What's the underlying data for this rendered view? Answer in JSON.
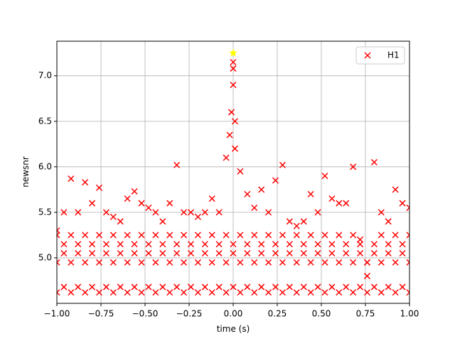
{
  "chart_data": {
    "type": "scatter",
    "xlabel": "time (s)",
    "ylabel": "newsnr",
    "xlim": [
      -1.0,
      1.0
    ],
    "ylim": [
      4.5,
      7.38
    ],
    "xticks": [
      {
        "value": -1.0,
        "label": "−1.00"
      },
      {
        "value": -0.75,
        "label": "−0.75"
      },
      {
        "value": -0.5,
        "label": "−0.50"
      },
      {
        "value": -0.25,
        "label": "−0.25"
      },
      {
        "value": 0,
        "label": "0.00"
      },
      {
        "value": 0.25,
        "label": "0.25"
      },
      {
        "value": 0.5,
        "label": "0.50"
      },
      {
        "value": 0.75,
        "label": "0.75"
      },
      {
        "value": 1.0,
        "label": "1.00"
      }
    ],
    "yticks": [
      {
        "value": 5.0,
        "label": "5.0"
      },
      {
        "value": 5.5,
        "label": "5.5"
      },
      {
        "value": 6.0,
        "label": "6.0"
      },
      {
        "value": 6.5,
        "label": "6.5"
      },
      {
        "value": 7.0,
        "label": "7.0"
      }
    ],
    "grid": true,
    "legend": "upper right",
    "series": [
      {
        "name": "H1",
        "color": "#ff0000",
        "marker": "x",
        "x": [
          -1.0,
          -0.96,
          -0.92,
          -0.88,
          -0.84,
          -0.8,
          -0.76,
          -0.72,
          -0.68,
          -0.64,
          -0.6,
          -0.56,
          -0.52,
          -0.48,
          -0.44,
          -0.4,
          -0.36,
          -0.32,
          -0.28,
          -0.24,
          -0.2,
          -0.16,
          -0.12,
          -0.08,
          -0.04,
          0,
          0.04,
          0.08,
          0.12,
          0.16,
          0.2,
          0.24,
          0.28,
          0.32,
          0.36,
          0.4,
          0.44,
          0.48,
          0.52,
          0.56,
          0.6,
          0.64,
          0.68,
          0.72,
          0.76,
          0.8,
          0.84,
          0.88,
          0.92,
          0.96,
          1.0,
          -1.0,
          -0.96,
          -0.92,
          -0.88,
          -0.84,
          -0.8,
          -0.76,
          -0.72,
          -0.68,
          -0.64,
          -0.6,
          -0.56,
          -0.52,
          -0.48,
          -0.44,
          -0.4,
          -0.36,
          -0.32,
          -0.28,
          -0.24,
          -0.2,
          -0.16,
          -0.12,
          -0.08,
          -0.04,
          0,
          0.04,
          0.08,
          0.12,
          0.16,
          0.2,
          0.24,
          0.28,
          0.32,
          0.36,
          0.4,
          0.44,
          0.48,
          0.52,
          0.56,
          0.6,
          0.64,
          0.68,
          0.72,
          0.76,
          0.8,
          0.84,
          0.88,
          0.92,
          0.96,
          1.0,
          -1.0,
          -0.96,
          -0.92,
          -0.88,
          -0.84,
          -0.8,
          -0.76,
          -0.72,
          -0.68,
          -0.64,
          -0.6,
          -0.56,
          -0.52,
          -0.48,
          -0.44,
          -0.4,
          -0.36,
          -0.32,
          -0.28,
          -0.24,
          -0.2,
          -0.16,
          -0.12,
          -0.08,
          -0.04,
          0,
          0.04,
          0.08,
          0.12,
          0.16,
          0.2,
          0.24,
          0.28,
          0.32,
          0.36,
          0.4,
          0.44,
          0.48,
          0.52,
          0.56,
          0.6,
          0.64,
          0.68,
          0.72,
          0.76,
          0.8,
          0.84,
          0.88,
          0.92,
          0.96,
          1.0,
          -1.0,
          -0.96,
          -0.92,
          -0.88,
          -0.84,
          -0.8,
          -0.76,
          -0.72,
          -0.68,
          -0.64,
          -0.6,
          -0.56,
          -0.52,
          -0.48,
          -0.44,
          -0.4,
          -0.36,
          -0.32,
          -0.28,
          -0.24,
          -0.2,
          -0.16,
          -0.12,
          -0.08,
          -0.04,
          0,
          0.04,
          0.08,
          0.12,
          0.16,
          0.2,
          0.24,
          0.28,
          0.32,
          0.36,
          0.4,
          0.44,
          0.48,
          0.52,
          0.56,
          0.6,
          0.64,
          0.68,
          0.72,
          0.76,
          0.8,
          0.84,
          0.88,
          0.92,
          0.96,
          1.0,
          -0.02,
          -0.01,
          0,
          0,
          0.01,
          0.01
        ],
        "values": [
          4.62,
          4.68,
          4.62,
          4.68,
          4.62,
          4.68,
          4.62,
          4.68,
          4.62,
          4.68,
          4.62,
          4.68,
          4.62,
          4.68,
          4.62,
          4.68,
          4.62,
          4.68,
          4.62,
          4.68,
          4.62,
          4.68,
          4.62,
          4.68,
          4.62,
          4.68,
          4.62,
          4.68,
          4.62,
          4.68,
          4.62,
          4.68,
          4.62,
          4.68,
          4.62,
          4.68,
          4.62,
          4.68,
          4.62,
          4.68,
          4.62,
          4.68,
          4.62,
          4.68,
          4.62,
          4.68,
          4.62,
          4.68,
          4.62,
          4.68,
          4.62,
          4.95,
          5.05,
          4.95,
          5.05,
          4.95,
          5.05,
          4.95,
          5.05,
          4.95,
          5.05,
          4.95,
          5.05,
          4.95,
          5.05,
          4.95,
          5.05,
          4.95,
          5.05,
          4.95,
          5.05,
          4.95,
          5.05,
          4.95,
          5.05,
          4.95,
          5.05,
          4.95,
          5.05,
          4.95,
          5.05,
          4.95,
          5.05,
          4.95,
          5.05,
          4.95,
          5.05,
          4.95,
          5.05,
          4.95,
          5.05,
          4.95,
          5.05,
          4.95,
          5.05,
          4.95,
          5.05,
          4.95,
          5.05,
          4.95,
          5.05,
          4.95,
          5.25,
          5.15,
          5.25,
          5.15,
          5.25,
          5.15,
          5.25,
          5.15,
          5.25,
          5.15,
          5.25,
          5.15,
          5.25,
          5.15,
          5.25,
          5.15,
          5.25,
          5.15,
          5.25,
          5.15,
          5.25,
          5.15,
          5.25,
          5.15,
          5.25,
          5.15,
          5.25,
          5.15,
          5.25,
          5.15,
          5.25,
          5.15,
          5.25,
          5.15,
          5.25,
          5.15,
          5.25,
          5.15,
          5.25,
          5.15,
          5.25,
          5.15,
          5.25,
          5.15,
          4.8,
          5.15,
          5.25,
          5.15,
          5.25,
          5.15,
          5.25,
          5.3,
          5.5,
          5.87,
          5.5,
          5.83,
          5.6,
          5.77,
          5.5,
          5.45,
          5.4,
          5.65,
          5.73,
          5.6,
          5.55,
          5.5,
          5.4,
          5.6,
          6.02,
          5.5,
          5.5,
          5.45,
          5.5,
          5.65,
          5.5,
          6.1,
          7.15,
          5.95,
          5.7,
          5.55,
          5.75,
          5.5,
          5.85,
          6.02,
          5.4,
          5.35,
          5.4,
          5.7,
          5.5,
          5.9,
          5.65,
          5.6,
          5.6,
          6.0,
          5.2,
          4.95,
          6.05,
          5.5,
          5.4,
          5.75,
          5.6,
          5.55,
          6.35,
          6.6,
          6.9,
          7.08,
          6.5,
          6.2
        ]
      },
      {
        "color": "#ffff00",
        "marker": "star",
        "x": [
          0
        ],
        "values": [
          7.25
        ]
      }
    ]
  }
}
